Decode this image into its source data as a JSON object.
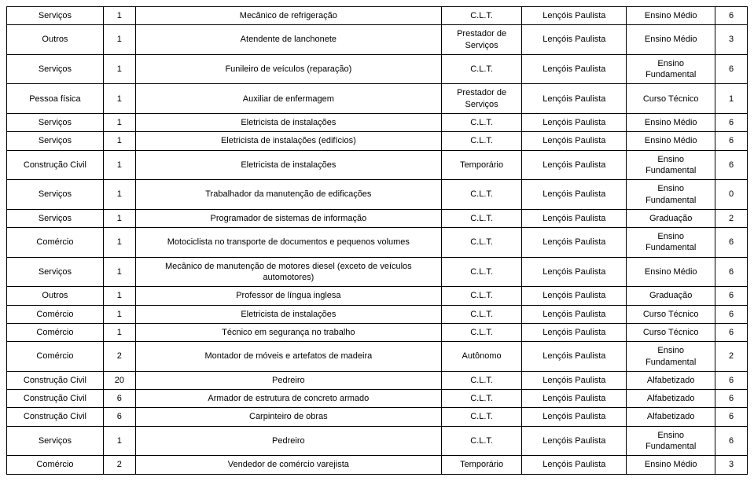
{
  "table": {
    "colors": {
      "background": "#ffffff",
      "border": "#000000",
      "text": "#000000"
    },
    "font": {
      "family": "Arial",
      "size": 11
    },
    "columns": [
      {
        "key": "sector",
        "width_pct": 12
      },
      {
        "key": "qty",
        "width_pct": 4
      },
      {
        "key": "occupation",
        "width_pct": 38
      },
      {
        "key": "contract",
        "width_pct": 10
      },
      {
        "key": "city",
        "width_pct": 13
      },
      {
        "key": "education",
        "width_pct": 11
      },
      {
        "key": "months",
        "width_pct": 4
      }
    ],
    "rows": [
      {
        "sector": "Serviços",
        "qty": "1",
        "occupation": "Mecânico de refrigeração",
        "contract": "C.L.T.",
        "city": "Lençóis Paulista",
        "education": "Ensino Médio",
        "months": "6"
      },
      {
        "sector": "Outros",
        "qty": "1",
        "occupation": "Atendente de lanchonete",
        "contract": "Prestador de Serviços",
        "city": "Lençóis Paulista",
        "education": "Ensino Médio",
        "months": "3"
      },
      {
        "sector": "Serviços",
        "qty": "1",
        "occupation": "Funileiro de veículos (reparação)",
        "contract": "C.L.T.",
        "city": "Lençóis Paulista",
        "education": "Ensino Fundamental",
        "months": "6"
      },
      {
        "sector": "Pessoa física",
        "qty": "1",
        "occupation": "Auxiliar de enfermagem",
        "contract": "Prestador de Serviços",
        "city": "Lençóis Paulista",
        "education": "Curso Técnico",
        "months": "1"
      },
      {
        "sector": "Serviços",
        "qty": "1",
        "occupation": "Eletricista de instalações",
        "contract": "C.L.T.",
        "city": "Lençóis Paulista",
        "education": "Ensino Médio",
        "months": "6"
      },
      {
        "sector": "Serviços",
        "qty": "1",
        "occupation": "Eletricista de instalações (edifícios)",
        "contract": "C.L.T.",
        "city": "Lençóis Paulista",
        "education": "Ensino Médio",
        "months": "6"
      },
      {
        "sector": "Construção Civil",
        "qty": "1",
        "occupation": "Eletricista de instalações",
        "contract": "Temporário",
        "city": "Lençóis Paulista",
        "education": "Ensino Fundamental",
        "months": "6"
      },
      {
        "sector": "Serviços",
        "qty": "1",
        "occupation": "Trabalhador da manutenção de edificações",
        "contract": "C.L.T.",
        "city": "Lençóis Paulista",
        "education": "Ensino Fundamental",
        "months": "0"
      },
      {
        "sector": "Serviços",
        "qty": "1",
        "occupation": "Programador de sistemas de informação",
        "contract": "C.L.T.",
        "city": "Lençóis Paulista",
        "education": "Graduação",
        "months": "2"
      },
      {
        "sector": "Comércio",
        "qty": "1",
        "occupation": "Motociclista no transporte de documentos e pequenos volumes",
        "contract": "C.L.T.",
        "city": "Lençóis Paulista",
        "education": "Ensino Fundamental",
        "months": "6"
      },
      {
        "sector": "Serviços",
        "qty": "1",
        "occupation": "Mecânico de manutenção de motores diesel (exceto de veículos automotores)",
        "contract": "C.L.T.",
        "city": "Lençóis Paulista",
        "education": "Ensino Médio",
        "months": "6"
      },
      {
        "sector": "Outros",
        "qty": "1",
        "occupation": "Professor de língua inglesa",
        "contract": "C.L.T.",
        "city": "Lençóis Paulista",
        "education": "Graduação",
        "months": "6"
      },
      {
        "sector": "Comércio",
        "qty": "1",
        "occupation": "Eletricista de instalações",
        "contract": "C.L.T.",
        "city": "Lençóis Paulista",
        "education": "Curso Técnico",
        "months": "6"
      },
      {
        "sector": "Comércio",
        "qty": "1",
        "occupation": "Técnico em segurança no trabalho",
        "contract": "C.L.T.",
        "city": "Lençóis Paulista",
        "education": "Curso Técnico",
        "months": "6"
      },
      {
        "sector": "Comércio",
        "qty": "2",
        "occupation": "Montador de móveis e artefatos de madeira",
        "contract": "Autônomo",
        "city": "Lençóis Paulista",
        "education": "Ensino Fundamental",
        "months": "2"
      },
      {
        "sector": "Construção Civil",
        "qty": "20",
        "occupation": "Pedreiro",
        "contract": "C.L.T.",
        "city": "Lençóis Paulista",
        "education": "Alfabetizado",
        "months": "6"
      },
      {
        "sector": "Construção Civil",
        "qty": "6",
        "occupation": "Armador de estrutura de concreto armado",
        "contract": "C.L.T.",
        "city": "Lençóis Paulista",
        "education": "Alfabetizado",
        "months": "6"
      },
      {
        "sector": "Construção Civil",
        "qty": "6",
        "occupation": "Carpinteiro de obras",
        "contract": "C.L.T.",
        "city": "Lençóis Paulista",
        "education": "Alfabetizado",
        "months": "6"
      },
      {
        "sector": "Serviços",
        "qty": "1",
        "occupation": "Pedreiro",
        "contract": "C.L.T.",
        "city": "Lençóis Paulista",
        "education": "Ensino Fundamental",
        "months": "6"
      },
      {
        "sector": "Comércio",
        "qty": "2",
        "occupation": "Vendedor de comércio varejista",
        "contract": "Temporário",
        "city": "Lençóis Paulista",
        "education": "Ensino Médio",
        "months": "3"
      }
    ]
  }
}
